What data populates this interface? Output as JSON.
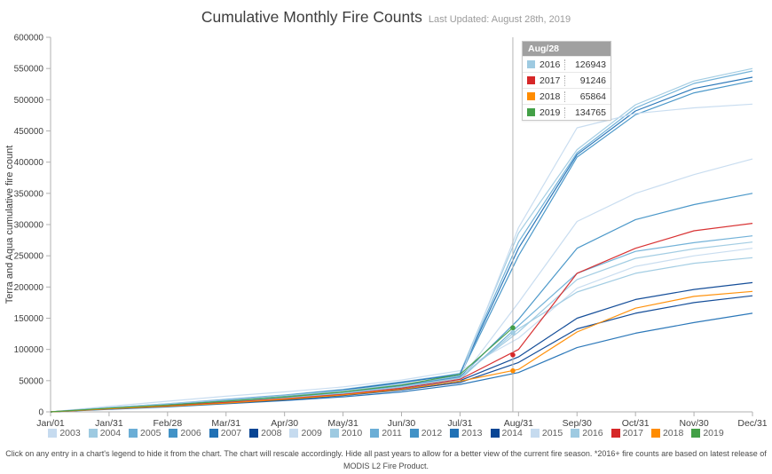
{
  "header": {
    "title": "Cumulative Monthly Fire Counts",
    "subtitle": "Last Updated: August 28th, 2019"
  },
  "chart_data": {
    "type": "line",
    "title": "Cumulative Monthly Fire Counts",
    "xlabel": "",
    "ylabel": "Terra and Aqua cumulative fire count",
    "ylim": [
      0,
      600000
    ],
    "y_tick_step": 50000,
    "grid": false,
    "legend_position": "bottom",
    "hover_date": "Aug/28",
    "x": [
      "Jan/01",
      "Jan/31",
      "Feb/28",
      "Mar/31",
      "Apr/30",
      "May/31",
      "Jun/30",
      "Jul/31",
      "Aug/31",
      "Sep/30",
      "Oct/31",
      "Nov/30",
      "Dec/31"
    ],
    "series": [
      {
        "name": "2003",
        "color": "#c6dbef",
        "values": [
          0,
          9000,
          17000,
          25000,
          32000,
          40000,
          51000,
          66000,
          118000,
          198000,
          233000,
          250000,
          262000
        ]
      },
      {
        "name": "2004",
        "color": "#9ecae1",
        "values": [
          0,
          6000,
          12000,
          18000,
          25000,
          34000,
          46000,
          62000,
          286000,
          420000,
          492000,
          530000,
          550000
        ]
      },
      {
        "name": "2005",
        "color": "#6baed6",
        "values": [
          0,
          7000,
          13000,
          20000,
          27000,
          36000,
          48000,
          61000,
          272000,
          415000,
          487000,
          526000,
          546000
        ]
      },
      {
        "name": "2006",
        "color": "#4292c6",
        "values": [
          0,
          5000,
          11000,
          17000,
          23000,
          31000,
          43000,
          58000,
          250000,
          408000,
          476000,
          511000,
          530000
        ]
      },
      {
        "name": "2007",
        "color": "#2171b5",
        "values": [
          0,
          6000,
          12000,
          19000,
          26000,
          35000,
          47000,
          60000,
          262000,
          412000,
          482000,
          518000,
          536000
        ]
      },
      {
        "name": "2008",
        "color": "#084594",
        "values": [
          0,
          5000,
          10000,
          15000,
          21000,
          28000,
          37000,
          50000,
          88000,
          150000,
          180000,
          196000,
          207000
        ]
      },
      {
        "name": "2009",
        "color": "#c6dbef",
        "values": [
          0,
          6000,
          11000,
          17000,
          23000,
          31000,
          41000,
          55000,
          295000,
          455000,
          478000,
          487000,
          493000
        ]
      },
      {
        "name": "2010",
        "color": "#9ecae1",
        "values": [
          0,
          7000,
          13000,
          19000,
          26000,
          34000,
          44000,
          57000,
          128000,
          212000,
          246000,
          261000,
          272000
        ]
      },
      {
        "name": "2011",
        "color": "#6baed6",
        "values": [
          0,
          5000,
          10000,
          16000,
          22000,
          29000,
          39000,
          52000,
          138000,
          222000,
          257000,
          271000,
          282000
        ]
      },
      {
        "name": "2012",
        "color": "#4292c6",
        "values": [
          0,
          6000,
          11000,
          17000,
          23000,
          31000,
          42000,
          56000,
          148000,
          262000,
          308000,
          332000,
          350000
        ]
      },
      {
        "name": "2013",
        "color": "#2171b5",
        "values": [
          0,
          4000,
          8000,
          13000,
          18000,
          24000,
          32000,
          44000,
          63000,
          103000,
          126000,
          143000,
          158000
        ]
      },
      {
        "name": "2014",
        "color": "#084594",
        "values": [
          0,
          5000,
          9000,
          14000,
          19000,
          26000,
          35000,
          47000,
          79000,
          133000,
          158000,
          175000,
          186000
        ]
      },
      {
        "name": "2015",
        "color": "#c6dbef",
        "values": [
          0,
          5000,
          10000,
          15000,
          21000,
          28000,
          38000,
          51000,
          175000,
          305000,
          350000,
          380000,
          405000
        ]
      },
      {
        "name": "2016",
        "color": "#9ecae1",
        "values": [
          0,
          6000,
          11000,
          16000,
          22000,
          30000,
          40000,
          54000,
          133000,
          192000,
          222000,
          238000,
          247000
        ]
      },
      {
        "name": "2017",
        "color": "#d62728",
        "values": [
          0,
          5000,
          10000,
          15000,
          21000,
          28000,
          38000,
          52000,
          100000,
          222000,
          262000,
          290000,
          302000
        ]
      },
      {
        "name": "2018",
        "color": "#ff8c00",
        "values": [
          0,
          5000,
          9000,
          14000,
          20000,
          27000,
          36000,
          49000,
          68000,
          128000,
          166000,
          185000,
          193000
        ]
      },
      {
        "name": "2019",
        "color": "#43a047",
        "end": "Aug/28",
        "values": [
          0,
          6000,
          11000,
          17000,
          24000,
          32000,
          43000,
          60000,
          134765
        ]
      }
    ]
  },
  "tooltip": {
    "header": "Aug/28",
    "rows": [
      {
        "year": "2016",
        "value": 126943,
        "color": "#9ecae1"
      },
      {
        "year": "2017",
        "value": 91246,
        "color": "#d62728"
      },
      {
        "year": "2018",
        "value": 65864,
        "color": "#ff8c00"
      },
      {
        "year": "2019",
        "value": 134765,
        "color": "#43a047"
      }
    ]
  },
  "footer": {
    "text": "Click on any entry in a chart's legend to hide it from the chart. The chart will rescale accordingly. Hide all past years to allow for a better view of the current fire season. *2016+ fire counts are based on latest release of MODIS L2 Fire Product."
  }
}
